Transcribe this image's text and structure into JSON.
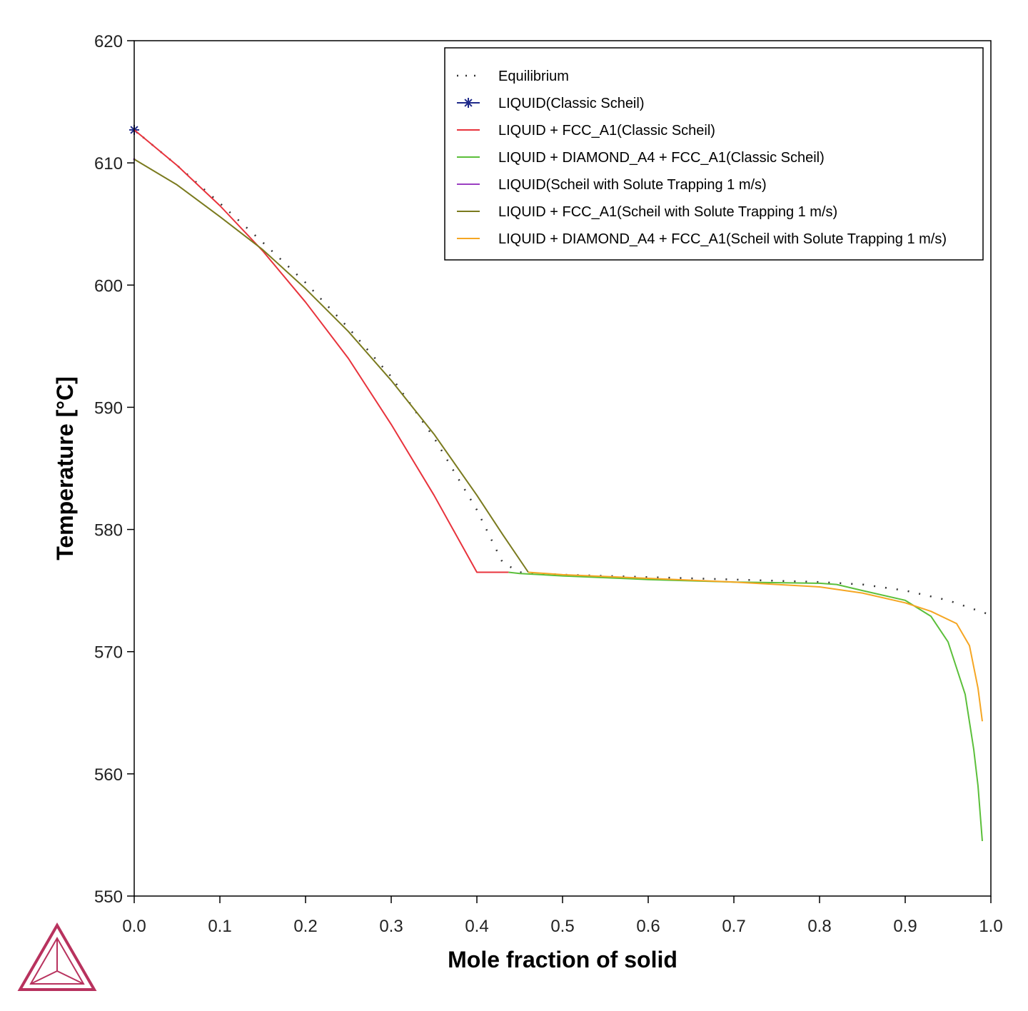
{
  "chart_data": {
    "type": "line",
    "xlabel": "Mole fraction of solid",
    "ylabel": "Temperature [°C]",
    "xlim": [
      0.0,
      1.0
    ],
    "ylim": [
      550,
      620
    ],
    "xticks": [
      0.0,
      0.1,
      0.2,
      0.3,
      0.4,
      0.5,
      0.6,
      0.7,
      0.8,
      0.9,
      1.0
    ],
    "xtick_labels": [
      "0.0",
      "0.1",
      "0.2",
      "0.3",
      "0.4",
      "0.5",
      "0.6",
      "0.7",
      "0.8",
      "0.9",
      "1.0"
    ],
    "yticks": [
      550,
      560,
      570,
      580,
      590,
      600,
      610,
      620
    ],
    "ytick_labels": [
      "550",
      "560",
      "570",
      "580",
      "590",
      "600",
      "610",
      "620"
    ],
    "grid": false,
    "legend_position": "top-right",
    "series": [
      {
        "name": "Equilibrium",
        "color": "#333333",
        "style": "dotted",
        "x": [
          0.0,
          0.05,
          0.1,
          0.15,
          0.2,
          0.25,
          0.3,
          0.35,
          0.4,
          0.43,
          0.45,
          0.5,
          0.6,
          0.7,
          0.8,
          0.85,
          0.9,
          0.95,
          1.0
        ],
        "y": [
          612.7,
          609.8,
          606.7,
          603.5,
          600.2,
          596.5,
          592.5,
          587.5,
          581.6,
          577.3,
          576.5,
          576.3,
          576.1,
          575.9,
          575.7,
          575.5,
          575.0,
          574.2,
          573.0
        ]
      },
      {
        "name": "LIQUID(Classic Scheil)",
        "color": "#1f2a8a",
        "style": "marker",
        "marker": "star",
        "x": [
          0.0
        ],
        "y": [
          612.7
        ]
      },
      {
        "name": "LIQUID + FCC_A1(Classic Scheil)",
        "color": "#e8333c",
        "style": "solid",
        "x": [
          0.0,
          0.05,
          0.1,
          0.15,
          0.2,
          0.25,
          0.3,
          0.35,
          0.4,
          0.437
        ],
        "y": [
          612.7,
          609.8,
          606.5,
          602.8,
          598.6,
          594.0,
          588.6,
          582.8,
          576.5,
          576.5
        ]
      },
      {
        "name": "LIQUID + DIAMOND_A4 + FCC_A1(Classic Scheil)",
        "color": "#5bbf3a",
        "style": "solid",
        "x": [
          0.437,
          0.45,
          0.5,
          0.6,
          0.7,
          0.8,
          0.82,
          0.85,
          0.9,
          0.93,
          0.95,
          0.97,
          0.98,
          0.985,
          0.99
        ],
        "y": [
          576.5,
          576.4,
          576.2,
          575.9,
          575.7,
          575.6,
          575.5,
          575.0,
          574.2,
          572.9,
          570.8,
          566.5,
          562.0,
          559.0,
          554.5
        ]
      },
      {
        "name": "LIQUID(Scheil with Solute Trapping 1 m/s)",
        "color": "#9b3fc2",
        "style": "solid",
        "x": [
          0.0
        ],
        "y": [
          610.3
        ]
      },
      {
        "name": "LIQUID + FCC_A1(Scheil with Solute Trapping 1 m/s)",
        "color": "#7a7a1e",
        "style": "solid",
        "x": [
          0.0,
          0.05,
          0.1,
          0.15,
          0.2,
          0.25,
          0.3,
          0.35,
          0.4,
          0.43,
          0.46
        ],
        "y": [
          610.3,
          608.2,
          605.6,
          602.9,
          599.7,
          596.2,
          592.2,
          587.8,
          582.8,
          579.6,
          576.5
        ]
      },
      {
        "name": "LIQUID + DIAMOND_A4 + FCC_A1(Scheil with Solute Trapping 1 m/s)",
        "color": "#f5a623",
        "style": "solid",
        "x": [
          0.46,
          0.5,
          0.6,
          0.7,
          0.8,
          0.85,
          0.9,
          0.93,
          0.96,
          0.975,
          0.985,
          0.99
        ],
        "y": [
          576.5,
          576.3,
          576.0,
          575.7,
          575.3,
          574.8,
          574.0,
          573.3,
          572.3,
          570.5,
          567.0,
          564.3
        ]
      }
    ]
  }
}
